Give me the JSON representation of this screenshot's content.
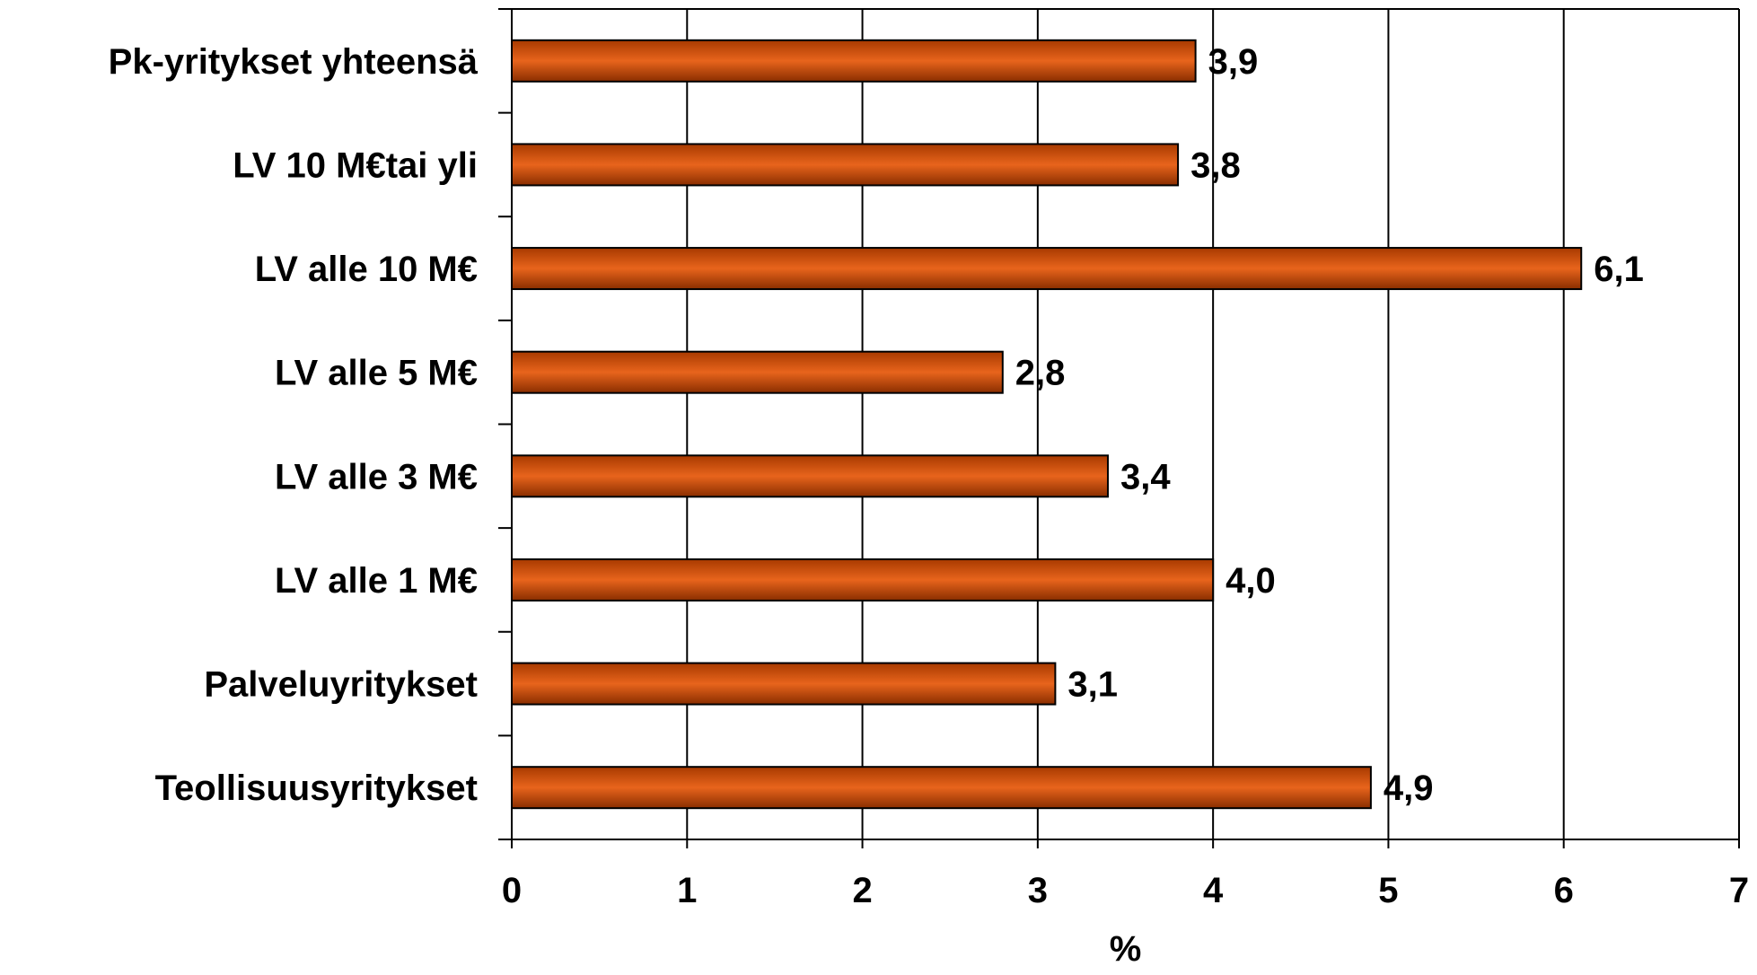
{
  "chart_data": {
    "type": "bar",
    "orientation": "horizontal",
    "categories": [
      "Pk-yritykset yhteensä",
      "LV 10 M€tai yli",
      "LV alle 10 M€",
      "LV alle 5 M€",
      "LV alle 3 M€",
      "LV alle 1 M€",
      "Palveluyritykset",
      "Teollisuusyritykset"
    ],
    "values": [
      3.9,
      3.8,
      6.1,
      2.8,
      3.4,
      4.0,
      3.1,
      4.9
    ],
    "data_labels": [
      "3,9",
      "3,8",
      "6,1",
      "2,8",
      "3,4",
      "4,0",
      "3,1",
      "4,9"
    ],
    "title": "",
    "xlabel": "%",
    "ylabel": "",
    "xlim": [
      0,
      7
    ],
    "x_ticks": [
      "0",
      "1",
      "2",
      "3",
      "4",
      "5",
      "6",
      "7"
    ],
    "grid": "vertical gridlines at each major tick",
    "legend": "none",
    "colors": {
      "bar_light": "#e8641c",
      "bar_mid": "#cc4a00",
      "bar_dark": "#7a2600",
      "bar_outline": "#000000",
      "grid": "#000000",
      "background": "#ffffff"
    }
  }
}
